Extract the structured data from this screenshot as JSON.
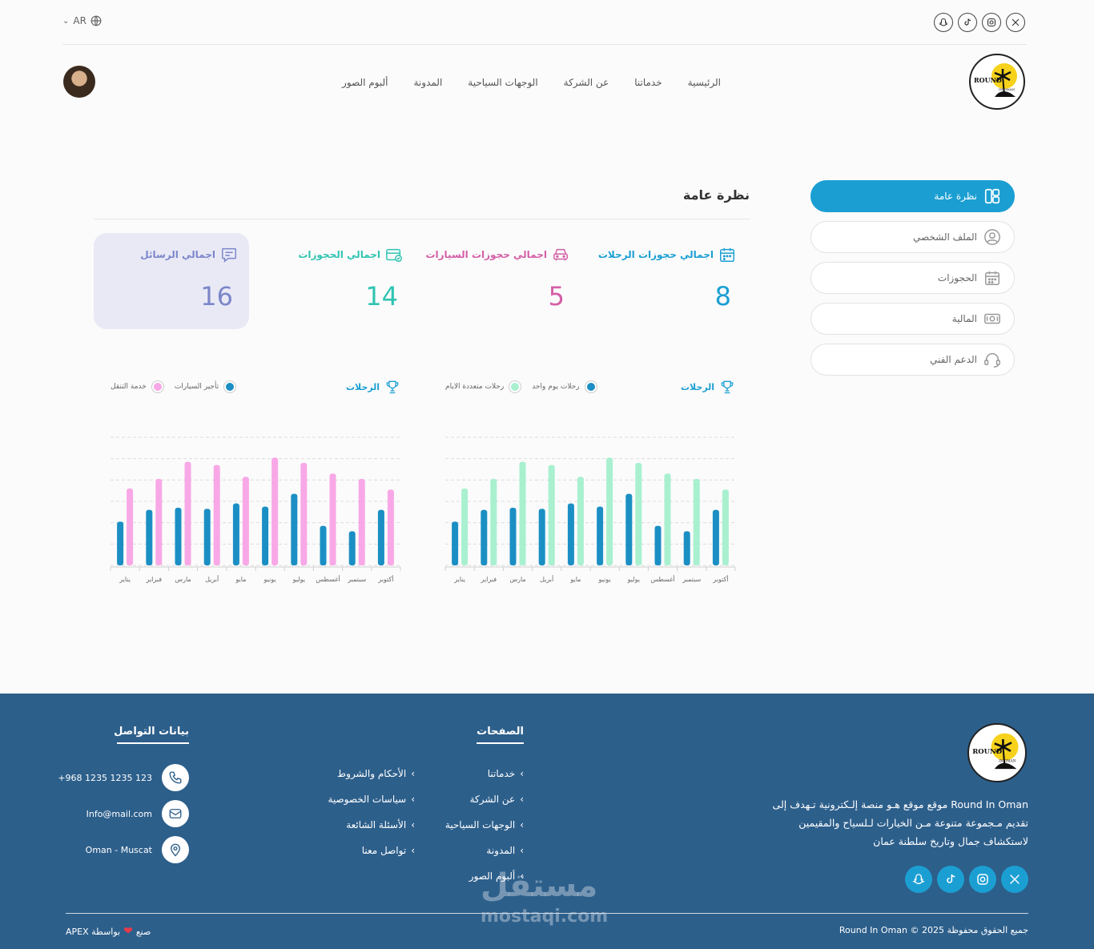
{
  "topbar": {
    "lang": "AR",
    "social_icons": [
      "snapchat-icon",
      "tiktok-icon",
      "instagram-icon",
      "x-icon"
    ]
  },
  "header": {
    "logo_text_top": "ROUND",
    "logo_text_bottom": "IN OMAN",
    "nav": [
      "الرئيسية",
      "خدماتنا",
      "عن الشركة",
      "الوجهات السياحية",
      "المدونة",
      "ألبوم الصور"
    ]
  },
  "sidebar": {
    "items": [
      {
        "label": "نظرة عامة",
        "icon": "dashboard-icon"
      },
      {
        "label": "الملف الشخصي",
        "icon": "user-icon"
      },
      {
        "label": "الحجوزات",
        "icon": "calendar-icon"
      },
      {
        "label": "المالية",
        "icon": "money-icon"
      },
      {
        "label": "الدعم الفني",
        "icon": "headset-icon"
      }
    ]
  },
  "overview": {
    "title": "نظرة عامة",
    "stats": [
      {
        "label": "اجمالي حجوزات الرحلات",
        "value": "8",
        "color": "#1b9fd3",
        "icon": "calendar-icon"
      },
      {
        "label": "اجمالي حجوزات السيارات",
        "value": "5",
        "color": "#d35fa6",
        "icon": "car-icon"
      },
      {
        "label": "اجمالي الحجوزات",
        "value": "14",
        "color": "#2fc4b2",
        "icon": "booking-icon"
      },
      {
        "label": "اجمالي الرسائل",
        "value": "16",
        "color": "#7b86c9",
        "icon": "message-icon"
      }
    ]
  },
  "chart_data": [
    {
      "type": "bar",
      "title": "الرحلات",
      "categories": [
        "يناير",
        "فبراير",
        "مارس",
        "أبريل",
        "مايو",
        "يونيو",
        "يوليو",
        "أغسطس",
        "سبتمبر",
        "أكتوبر"
      ],
      "series": [
        {
          "name": "رحلات يوم واحد",
          "color": "#1b8fc4",
          "values": [
            41,
            52,
            54,
            53,
            58,
            55,
            67,
            37,
            32,
            52
          ]
        },
        {
          "name": "رحلات متعددة الايام",
          "color": "#a8f0cf",
          "values": [
            72,
            81,
            97,
            94,
            83,
            101,
            96,
            86,
            81,
            71
          ]
        }
      ],
      "ylim": [
        0,
        120
      ],
      "grid": true
    },
    {
      "type": "bar",
      "title": "الرحلات",
      "categories": [
        "يناير",
        "فبراير",
        "مارس",
        "أبريل",
        "مايو",
        "يونيو",
        "يوليو",
        "أغسطس",
        "سبتمبر",
        "أكتوبر"
      ],
      "series": [
        {
          "name": "تأجير السيارات",
          "color": "#1b8fc4",
          "values": [
            41,
            52,
            54,
            53,
            58,
            55,
            67,
            37,
            32,
            52
          ]
        },
        {
          "name": "خدمة التنقل",
          "color": "#f8a8e6",
          "values": [
            72,
            81,
            97,
            94,
            83,
            101,
            96,
            86,
            81,
            71
          ]
        }
      ],
      "ylim": [
        0,
        120
      ],
      "grid": true
    }
  ],
  "footer": {
    "about": "Round In Oman موقع موقع هـو منصة إلـكترونية تـهدف إلى تقديم مـجموعة متنوعة مـن الخيارات لـلسياح والمقيمين لاستكشاف جمال وتاريخ سلطنة عمان",
    "pages_title": "الصفحات",
    "pages_col1": [
      "خدماتنا",
      "عن الشركة",
      "الوجهات السياحية",
      "المدونة",
      "ألبوم الصور"
    ],
    "pages_col2": [
      "الأحكام والشروط",
      "سياسات الخصوصية",
      "الأسئلة الشائعة",
      "تواصل معنا"
    ],
    "contact_title": "بيانات التواصل",
    "phone": "+968 1235 1235 123",
    "email": "Info@mail.com",
    "location": "Oman - Muscat",
    "copyright": "جميع الحقوق محفوظة 2025 © Round In Oman",
    "made_by_prefix": "صنع",
    "made_by_suffix": "بواسطة APEX",
    "watermark_ar": "مستقل",
    "watermark_en": "mostaqi.com"
  }
}
